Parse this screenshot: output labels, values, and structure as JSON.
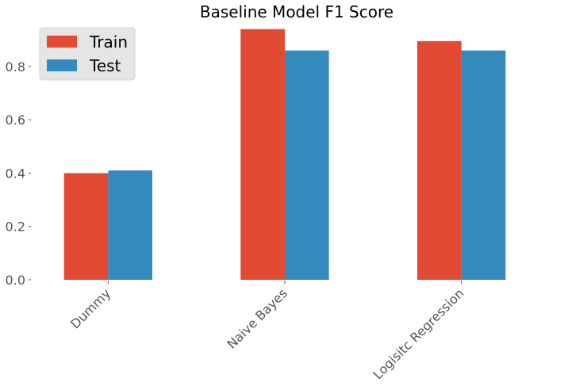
{
  "chart_data": {
    "type": "bar",
    "title": "Baseline Model F1 Score",
    "xlabel": "",
    "ylabel": "",
    "categories": [
      "Dummy",
      "Naive Bayes",
      "Logisitc Regression"
    ],
    "series": [
      {
        "name": "Train",
        "values": [
          0.4,
          0.94,
          0.895
        ],
        "color": "#E24A33"
      },
      {
        "name": "Test",
        "values": [
          0.41,
          0.86,
          0.86
        ],
        "color": "#348ABD"
      }
    ],
    "ylim": [
      0,
      0.96
    ],
    "yticks": [
      0.0,
      0.2,
      0.4,
      0.6,
      0.8
    ],
    "ytick_labels": [
      "0.0",
      "0.2",
      "0.4",
      "0.6",
      "0.8"
    ],
    "grid": false,
    "legend_position": "top-left"
  }
}
